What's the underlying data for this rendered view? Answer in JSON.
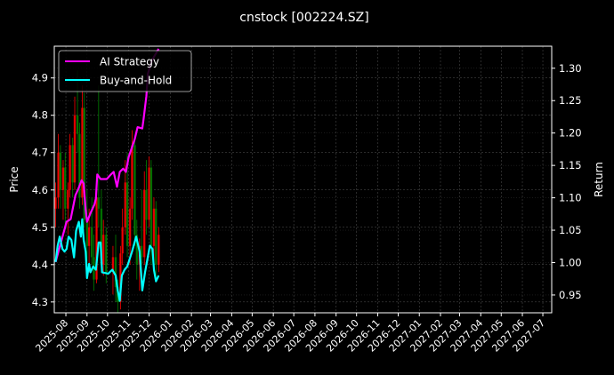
{
  "chart_data": {
    "type": "line",
    "title": "cnstock [002224.SZ]",
    "ylabel_left": "Price",
    "ylabel_right": "Return",
    "xlim": [
      "2025-07-15",
      "2027-07-14"
    ],
    "ylim_left": [
      4.271,
      4.985
    ],
    "ylim_right": [
      0.9225,
      1.334
    ],
    "grid": true,
    "legend_placement": "upper-left",
    "x_ticks": [
      "2025-08",
      "2025-09",
      "2025-10",
      "2025-11",
      "2025-12",
      "2026-01",
      "2026-02",
      "2026-03",
      "2026-04",
      "2026-05",
      "2026-06",
      "2026-07",
      "2026-08",
      "2026-09",
      "2026-10",
      "2026-11",
      "2026-12",
      "2027-01",
      "2027-02",
      "2027-03",
      "2027-04",
      "2027-05",
      "2027-06",
      "2027-07"
    ],
    "y_ticks_left": [
      "4.3",
      "4.4",
      "4.5",
      "4.6",
      "4.7",
      "4.8",
      "4.9"
    ],
    "y_ticks_right": [
      "0.95",
      "1.00",
      "1.05",
      "1.10",
      "1.15",
      "1.20",
      "1.25",
      "1.30"
    ],
    "colors": {
      "background": "#000000",
      "up": "#ff0000",
      "down": "#008000",
      "strategy": "#ff00ff",
      "buy_hold": "#00ffff",
      "grid": "#555555"
    },
    "candles_columns": [
      "date",
      "open",
      "high",
      "low",
      "close"
    ],
    "candles": [
      [
        "2025-07-17",
        4.55,
        4.62,
        4.5,
        4.58
      ],
      [
        "2025-07-21",
        4.58,
        4.75,
        4.55,
        4.7
      ],
      [
        "2025-07-24",
        4.7,
        4.72,
        4.55,
        4.6
      ],
      [
        "2025-07-28",
        4.6,
        4.68,
        4.52,
        4.66
      ],
      [
        "2025-07-31",
        4.66,
        4.7,
        4.5,
        4.55
      ],
      [
        "2025-08-04",
        4.55,
        4.62,
        4.48,
        4.6
      ],
      [
        "2025-08-07",
        4.6,
        4.75,
        4.58,
        4.72
      ],
      [
        "2025-08-11",
        4.72,
        4.74,
        4.58,
        4.62
      ],
      [
        "2025-08-14",
        4.62,
        4.85,
        4.6,
        4.8
      ],
      [
        "2025-08-18",
        4.8,
        4.92,
        4.7,
        4.75
      ],
      [
        "2025-08-21",
        4.75,
        4.78,
        4.55,
        4.58
      ],
      [
        "2025-08-25",
        4.58,
        4.88,
        4.56,
        4.82
      ],
      [
        "2025-08-28",
        4.82,
        4.86,
        4.5,
        4.52
      ],
      [
        "2025-09-01",
        4.52,
        4.6,
        4.4,
        4.45
      ],
      [
        "2025-09-04",
        4.45,
        4.55,
        4.38,
        4.5
      ],
      [
        "2025-09-08",
        4.5,
        4.58,
        4.4,
        4.42
      ],
      [
        "2025-09-11",
        4.42,
        4.48,
        4.33,
        4.36
      ],
      [
        "2025-09-15",
        4.36,
        4.62,
        4.35,
        4.58
      ],
      [
        "2025-09-18",
        4.58,
        4.88,
        4.5,
        4.55
      ],
      [
        "2025-09-22",
        4.55,
        4.6,
        4.38,
        4.4
      ],
      [
        "2025-09-25",
        4.4,
        4.52,
        4.37,
        4.48
      ],
      [
        "2025-09-29",
        4.48,
        4.5,
        4.35,
        4.38
      ],
      [
        "2025-10-09",
        4.38,
        4.45,
        4.32,
        4.42
      ],
      [
        "2025-10-13",
        4.42,
        4.48,
        4.3,
        4.34
      ],
      [
        "2025-10-16",
        4.34,
        4.36,
        4.27,
        4.3
      ],
      [
        "2025-10-20",
        4.3,
        4.45,
        4.28,
        4.43
      ],
      [
        "2025-10-23",
        4.43,
        4.55,
        4.4,
        4.5
      ],
      [
        "2025-10-27",
        4.5,
        4.68,
        4.48,
        4.62
      ],
      [
        "2025-10-30",
        4.62,
        4.7,
        4.42,
        4.45
      ],
      [
        "2025-11-03",
        4.45,
        4.58,
        4.4,
        4.55
      ],
      [
        "2025-11-06",
        4.55,
        4.76,
        4.52,
        4.72
      ],
      [
        "2025-11-10",
        4.72,
        4.74,
        4.45,
        4.48
      ],
      [
        "2025-11-13",
        4.48,
        4.52,
        4.36,
        4.4
      ],
      [
        "2025-11-17",
        4.4,
        4.47,
        4.33,
        4.45
      ],
      [
        "2025-11-20",
        4.45,
        4.6,
        4.4,
        4.42
      ],
      [
        "2025-11-24",
        4.42,
        4.65,
        4.4,
        4.6
      ],
      [
        "2025-11-27",
        4.6,
        4.68,
        4.48,
        4.52
      ],
      [
        "2025-12-01",
        4.52,
        4.69,
        4.5,
        4.66
      ],
      [
        "2025-12-04",
        4.66,
        4.68,
        4.4,
        4.45
      ],
      [
        "2025-12-08",
        4.45,
        4.58,
        4.38,
        4.55
      ],
      [
        "2025-12-11",
        4.55,
        4.57,
        4.36,
        4.4
      ],
      [
        "2025-12-15",
        4.4,
        4.5,
        4.38,
        4.48
      ]
    ],
    "series": [
      {
        "name": "AI Strategy",
        "axis": "right",
        "x": [
          "2025-07-17",
          "2025-08-02",
          "2025-08-08",
          "2025-08-15",
          "2025-08-19",
          "2025-08-24",
          "2025-08-27",
          "2025-08-30",
          "2025-09-01",
          "2025-09-06",
          "2025-09-12",
          "2025-09-14",
          "2025-09-16",
          "2025-09-21",
          "2025-09-30",
          "2025-10-06",
          "2025-10-10",
          "2025-10-15",
          "2025-10-19",
          "2025-10-24",
          "2025-10-28",
          "2025-11-01",
          "2025-11-10",
          "2025-11-14",
          "2025-11-21",
          "2025-11-23",
          "2025-11-27",
          "2025-11-29",
          "2025-12-05",
          "2025-12-15"
        ],
        "values": [
          1.001,
          1.063,
          1.067,
          1.104,
          1.113,
          1.127,
          1.122,
          1.081,
          1.063,
          1.076,
          1.09,
          1.099,
          1.136,
          1.129,
          1.129,
          1.136,
          1.14,
          1.117,
          1.14,
          1.145,
          1.14,
          1.163,
          1.191,
          1.209,
          1.207,
          1.223,
          1.257,
          1.291,
          1.312,
          1.33
        ]
      },
      {
        "name": "Buy-and-Hold",
        "axis": "right",
        "x": [
          "2025-07-17",
          "2025-07-20",
          "2025-07-23",
          "2025-07-27",
          "2025-07-30",
          "2025-08-02",
          "2025-08-05",
          "2025-08-09",
          "2025-08-13",
          "2025-08-16",
          "2025-08-20",
          "2025-08-23",
          "2025-08-25",
          "2025-08-27",
          "2025-08-30",
          "2025-09-01",
          "2025-09-04",
          "2025-09-06",
          "2025-09-10",
          "2025-09-14",
          "2025-09-18",
          "2025-09-21",
          "2025-09-23",
          "2025-10-02",
          "2025-10-08",
          "2025-10-13",
          "2025-10-16",
          "2025-10-19",
          "2025-10-22",
          "2025-10-26",
          "2025-10-30",
          "2025-11-06",
          "2025-11-12",
          "2025-11-17",
          "2025-11-21",
          "2025-11-25",
          "2025-12-02",
          "2025-12-06",
          "2025-12-08",
          "2025-12-11",
          "2025-12-15"
        ],
        "values": [
          1.001,
          1.026,
          1.04,
          1.021,
          1.017,
          1.021,
          1.04,
          1.035,
          1.008,
          1.049,
          1.063,
          1.04,
          1.067,
          1.035,
          1.017,
          0.976,
          0.998,
          0.985,
          0.994,
          0.989,
          1.031,
          1.031,
          0.985,
          0.983,
          0.989,
          0.98,
          0.957,
          0.941,
          0.98,
          0.989,
          0.994,
          1.017,
          1.04,
          1.017,
          0.957,
          0.985,
          1.026,
          1.021,
          0.989,
          0.971,
          0.98
        ]
      }
    ]
  }
}
